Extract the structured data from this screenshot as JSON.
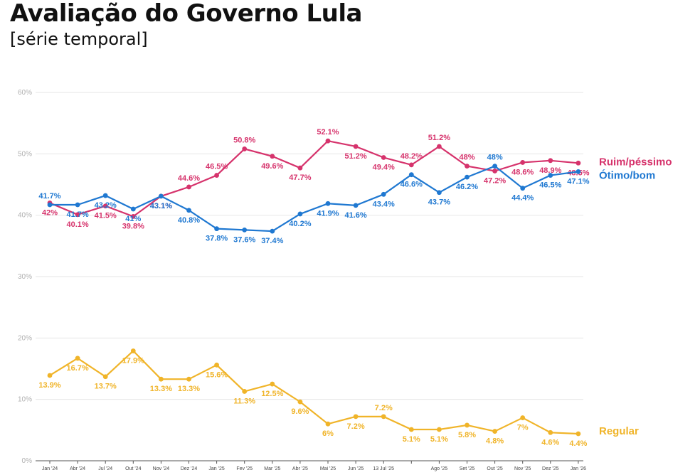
{
  "title": "Avaliação do Governo Lula",
  "subtitle": "[série temporal]",
  "chart_data": {
    "type": "line",
    "ylim": [
      0,
      60
    ],
    "yticks": [
      0,
      10,
      20,
      30,
      40,
      50,
      60
    ],
    "ytick_labels": [
      "0%",
      "10%",
      "20%",
      "30%",
      "40%",
      "50%",
      "60%"
    ],
    "grid": true,
    "legend": "right",
    "x_labels": [
      "Jan '24",
      "Abr '24",
      "Jul '24",
      "Out '24",
      "Nov '24",
      "Dez '24",
      "Jan '25",
      "Fev '25",
      "Mar '25",
      "Abr '25",
      "Mai '25",
      "Jun '25",
      "13 Jul '25",
      "",
      "Ago '25",
      "Set '25",
      "Out '25",
      "Nov '25",
      "Dez '25",
      "Jan '26"
    ],
    "series": [
      {
        "name": "Ruim/péssimo",
        "color": "#d6336c",
        "values": [
          42,
          40.1,
          41.5,
          39.8,
          43.1,
          44.6,
          46.5,
          50.8,
          49.6,
          47.7,
          52.1,
          51.2,
          49.4,
          48.2,
          51.2,
          48,
          47.2,
          48.6,
          48.9,
          48.5
        ],
        "labels": [
          "42%",
          "40.1%",
          "41.5%",
          "39.8%",
          "43.1%",
          "44.6%",
          "46.5%",
          "50.8%",
          "49.6%",
          "47.7%",
          "52.1%",
          "51.2%",
          "49.4%",
          "48.2%",
          "51.2%",
          "48%",
          "47.2%",
          "48.6%",
          "48.9%",
          "48.5%"
        ]
      },
      {
        "name": "Ótimo/bom",
        "color": "#1f78d1",
        "values": [
          41.7,
          41.7,
          43.2,
          41,
          43.1,
          40.8,
          37.8,
          37.6,
          37.4,
          40.2,
          41.9,
          41.6,
          43.4,
          46.6,
          43.7,
          46.2,
          48,
          44.4,
          46.5,
          47.1
        ],
        "labels": [
          "41.7%",
          "41.7%",
          "43.2%",
          "41%",
          "43.1%",
          "40.8%",
          "37.8%",
          "37.6%",
          "37.4%",
          "40.2%",
          "41.9%",
          "41.6%",
          "43.4%",
          "46.6%",
          "43.7%",
          "46.2%",
          "48%",
          "44.4%",
          "46.5%",
          "47.1%"
        ]
      },
      {
        "name": "Regular",
        "color": "#f0b429",
        "values": [
          13.9,
          16.7,
          13.7,
          17.9,
          13.3,
          13.3,
          15.6,
          11.3,
          12.5,
          9.6,
          6,
          7.2,
          7.2,
          5.1,
          5.1,
          5.8,
          4.8,
          7,
          4.6,
          4.4
        ],
        "labels": [
          "13.9%",
          "16.7%",
          "13.7%",
          "17.9%",
          "13.3%",
          "13.3%",
          "15.6%",
          "11.3%",
          "12.5%",
          "9.6%",
          "6%",
          "7.2%",
          "7.2%",
          "5.1%",
          "5.1%",
          "5.8%",
          "4.8%",
          "7%",
          "4.6%",
          "4.4%"
        ]
      }
    ]
  }
}
